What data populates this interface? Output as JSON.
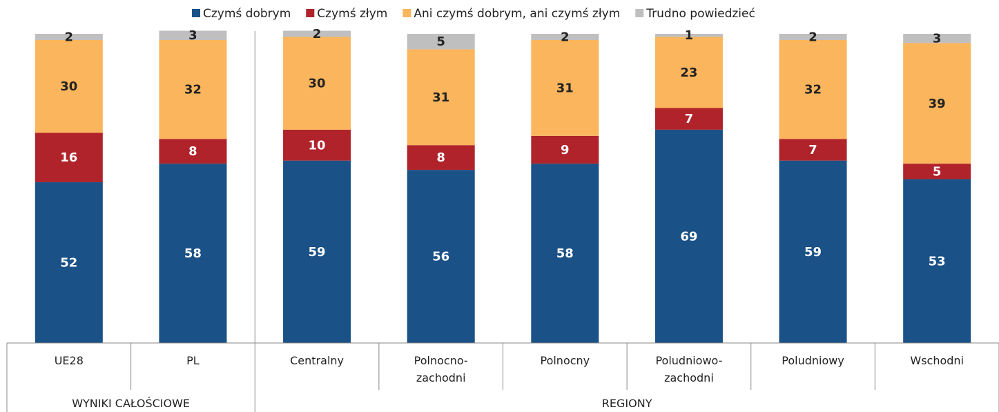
{
  "chart_data": {
    "type": "stacked_bar",
    "categories": [
      "UE28",
      "PL",
      "Centralny",
      "Polnocno-zachodni",
      "Polnocny",
      "Poludniowo-zachodni",
      "Poludniowy",
      "Wschodni"
    ],
    "groups": [
      "WYNIKI CAŁOŚCIOWE",
      "REGIONY"
    ],
    "series": [
      {
        "name": "Czymś dobrym",
        "color": "#1a5186",
        "values": [
          52,
          58,
          59,
          56,
          58,
          69,
          59,
          53
        ]
      },
      {
        "name": "Czymś złym",
        "color": "#b0232a",
        "values": [
          16,
          8,
          10,
          8,
          9,
          7,
          7,
          5
        ]
      },
      {
        "name": "Ani czymś dobrym, ani czymś złym",
        "color": "#fbb55c",
        "values": [
          30,
          32,
          30,
          31,
          31,
          23,
          32,
          39
        ]
      },
      {
        "name": "Trudno powiedzieć",
        "color": "#bfbfbf",
        "values": [
          2,
          3,
          2,
          5,
          2,
          1,
          2,
          3
        ]
      }
    ]
  }
}
